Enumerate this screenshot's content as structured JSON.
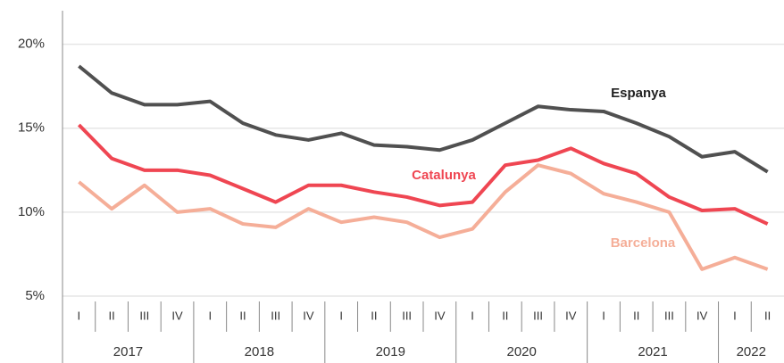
{
  "chart_data": {
    "type": "line",
    "categories": [
      "I",
      "II",
      "III",
      "IV",
      "I",
      "II",
      "III",
      "IV",
      "I",
      "II",
      "III",
      "IV",
      "I",
      "II",
      "III",
      "IV",
      "I",
      "II",
      "III",
      "IV",
      "I",
      "II"
    ],
    "years": [
      "2017",
      "2018",
      "2019",
      "2020",
      "2021",
      "2022"
    ],
    "series": [
      {
        "name": "Espanya",
        "color": "#505050",
        "values": [
          18.7,
          17.1,
          16.4,
          16.4,
          16.6,
          15.3,
          14.6,
          14.3,
          14.7,
          14.0,
          13.9,
          13.7,
          14.3,
          15.3,
          16.3,
          16.1,
          16.0,
          15.3,
          14.5,
          13.3,
          13.6,
          12.4
        ]
      },
      {
        "name": "Catalunya",
        "color": "#ef4652",
        "values": [
          15.2,
          13.2,
          12.5,
          12.5,
          12.2,
          11.4,
          10.6,
          11.6,
          11.6,
          11.2,
          10.9,
          10.4,
          10.6,
          12.8,
          13.1,
          13.8,
          12.9,
          12.3,
          10.9,
          10.1,
          10.2,
          9.3
        ]
      },
      {
        "name": "Barcelona",
        "color": "#f5ae98",
        "values": [
          11.8,
          10.2,
          11.6,
          10.0,
          10.2,
          9.3,
          9.1,
          10.2,
          9.4,
          9.7,
          9.4,
          8.5,
          9.0,
          11.2,
          12.8,
          12.3,
          11.1,
          10.6,
          10.0,
          6.6,
          7.3,
          6.6
        ]
      }
    ],
    "ylim": [
      5,
      22
    ],
    "yticks": [
      {
        "value": 5,
        "label": "5%"
      },
      {
        "value": 10,
        "label": "10%"
      },
      {
        "value": 15,
        "label": "15%"
      },
      {
        "value": 20,
        "label": "20%"
      }
    ],
    "grid": true
  }
}
